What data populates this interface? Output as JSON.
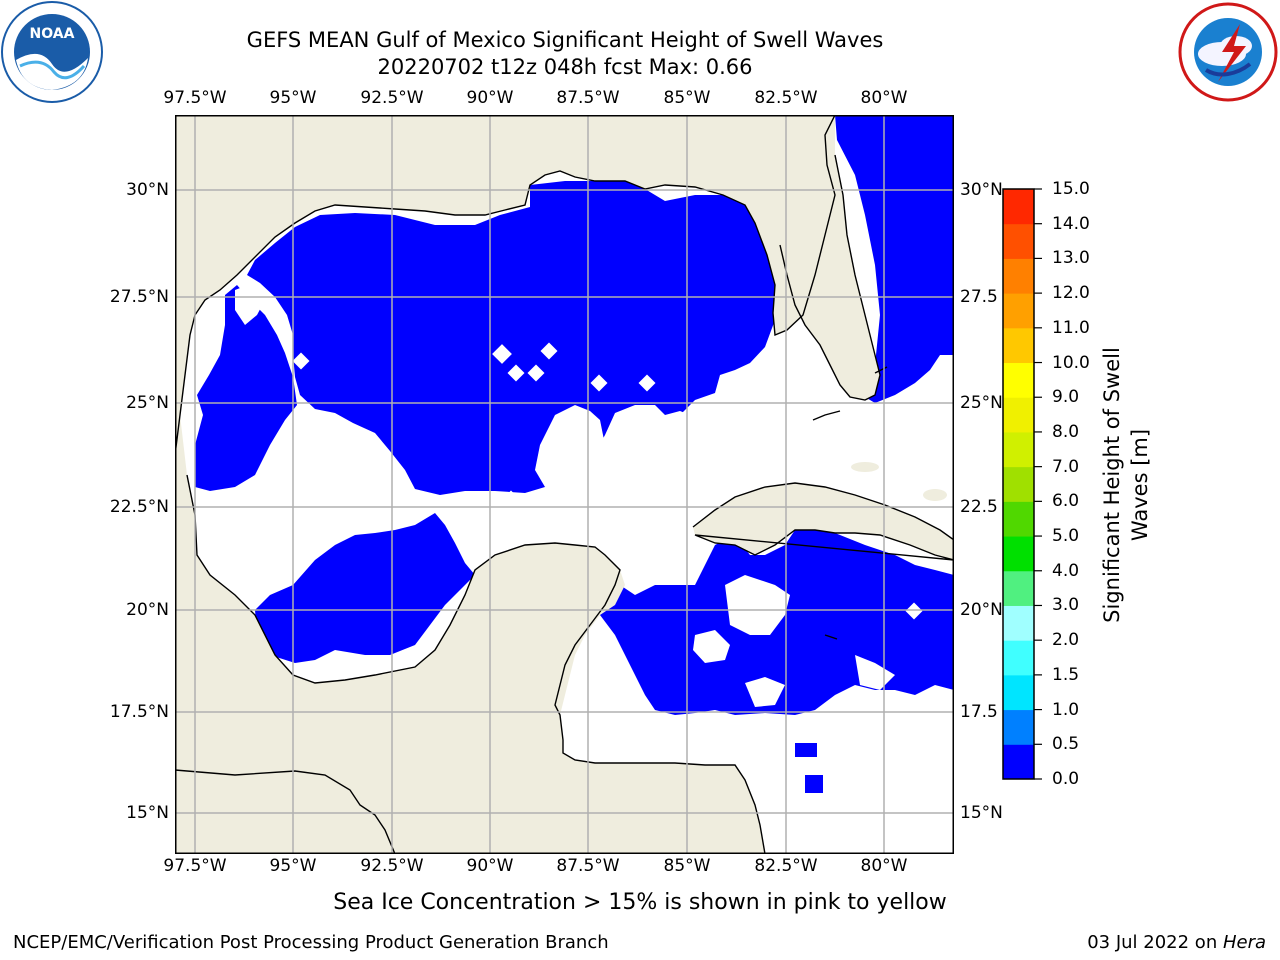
{
  "header": {
    "title_line1": "GEFS MEAN Gulf of Mexico Significant Height of Swell Waves",
    "title_line2": "20220702 t12z 048h fcst   Max: 0.66"
  },
  "logos": {
    "left": {
      "text": "NOAA",
      "ring_text": "NATIONAL OCEANIC AND ATMOSPHERIC ADMINISTRATION · U.S. DEPARTMENT OF COMMERCE",
      "color": "#1a5ca8"
    },
    "right": {
      "ring_text": "NATIONAL WEATHER SERVICE",
      "color": "#d01818"
    }
  },
  "map": {
    "lon_ticks": [
      "97.5°W",
      "95°W",
      "92.5°W",
      "90°W",
      "87.5°W",
      "85°W",
      "82.5°W",
      "80°W"
    ],
    "lat_ticks_left": [
      "30°N",
      "27.5°N",
      "25°N",
      "22.5°N",
      "20°N",
      "17.5°N",
      "15°N"
    ],
    "lat_ticks_right": [
      "30°N",
      "27.5",
      "25°N",
      "22.5",
      "20°N",
      "17.5",
      "15°N"
    ],
    "land_color": "#efedde",
    "sea_low_color": "#0000ff",
    "sea_mid_color": "#0080ff",
    "sea_high_color": "#3fa0ff",
    "grid_color": "#b0b0b0"
  },
  "colorbar": {
    "title_line1": "Significant Height of Swell",
    "title_line2": "Waves [m]",
    "labels": [
      "0.0",
      "0.5",
      "1.0",
      "1.5",
      "2.0",
      "3.0",
      "4.0",
      "5.0",
      "6.0",
      "7.0",
      "8.0",
      "9.0",
      "10.0",
      "11.0",
      "12.0",
      "13.0",
      "14.0",
      "15.0"
    ],
    "colors": [
      "#0000ff",
      "#0080ff",
      "#00e5ff",
      "#40ffff",
      "#a0ffff",
      "#50f080",
      "#00e000",
      "#50d800",
      "#a0e000",
      "#d0f000",
      "#f0f000",
      "#ffff00",
      "#ffc800",
      "#ffa000",
      "#ff8000",
      "#ff5000",
      "#ff2800",
      "#ff0000"
    ]
  },
  "footer": {
    "note": "Sea Ice Concentration > 15% is shown in pink to yellow",
    "left": "NCEP/EMC/Verification Post Processing Product Generation Branch",
    "date": "03 Jul 2022",
    "on": " on ",
    "machine": "Hera"
  }
}
